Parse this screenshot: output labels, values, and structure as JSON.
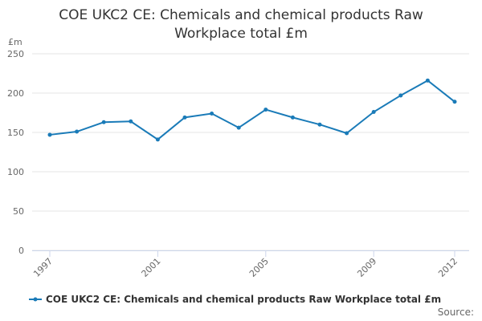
{
  "chart_data": {
    "type": "line",
    "title": "COE UKC2 CE: Chemicals and chemical products Raw Workplace total £m",
    "y_label": "£m",
    "x": [
      1997,
      1998,
      1999,
      2000,
      2001,
      2002,
      2003,
      2004,
      2005,
      2006,
      2007,
      2008,
      2009,
      2010,
      2011,
      2012
    ],
    "series": [
      {
        "name": "COE UKC2 CE: Chemicals and chemical products Raw Workplace total £m",
        "color": "#1a7bb8",
        "values": [
          147,
          151,
          163,
          164,
          141,
          169,
          174,
          156,
          179,
          169,
          160,
          149,
          176,
          197,
          216,
          189
        ]
      }
    ],
    "xlim": [
      1997,
      2012
    ],
    "xticks": [
      1997,
      2001,
      2005,
      2009,
      2012
    ],
    "ylim": [
      0,
      250
    ],
    "yticks": [
      0,
      50,
      100,
      150,
      200,
      250
    ],
    "grid": true,
    "legend": "bottom",
    "source": "Source:"
  }
}
